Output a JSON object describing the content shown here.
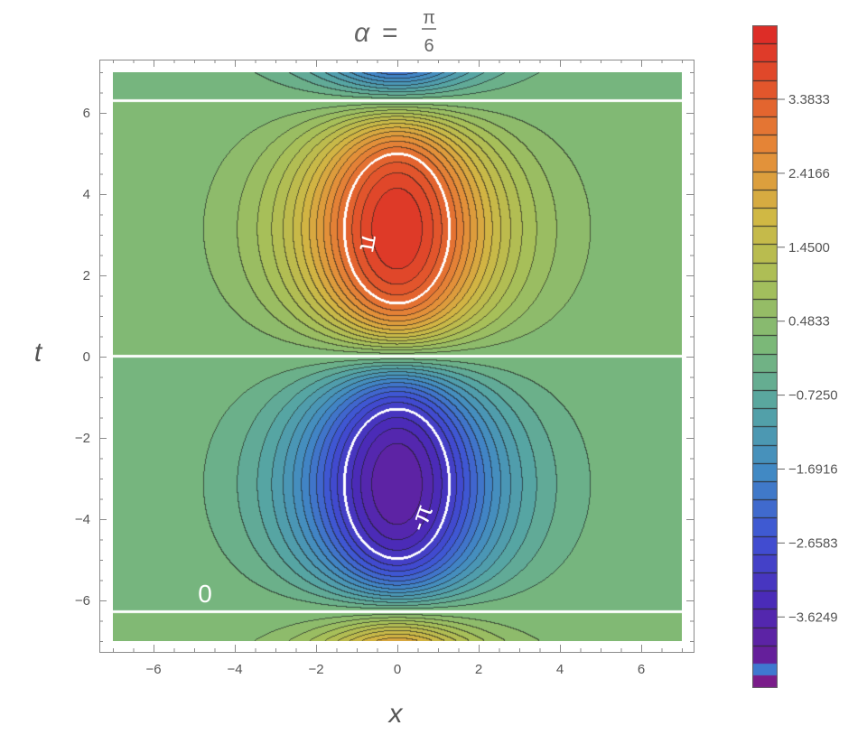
{
  "chart_data": {
    "type": "contour",
    "title": {
      "lhs": "α",
      "eq": "=",
      "num": "π",
      "den": "6"
    },
    "xlabel": "x",
    "ylabel": "t",
    "xlim": [
      -7,
      7
    ],
    "ylim": [
      -7,
      7
    ],
    "xticks": [
      "−6",
      "−4",
      "−2",
      "0",
      "2",
      "4",
      "6"
    ],
    "yticks": [
      "−6",
      "−4",
      "−2",
      "0",
      "2",
      "4",
      "6"
    ],
    "xtick_values": [
      -6,
      -4,
      -2,
      0,
      2,
      4,
      6
    ],
    "ytick_values": [
      -6,
      -4,
      -2,
      0,
      2,
      4,
      6
    ],
    "extrema": [
      {
        "kind": "max",
        "x": 0,
        "t": 3.14,
        "value": 4.1
      },
      {
        "kind": "min",
        "x": 0,
        "t": -3.14,
        "value": -4.1
      }
    ],
    "contour_step": 0.2417,
    "highlighted_contours": [
      {
        "level": 3.1416,
        "label": "π",
        "color": "#ffffff"
      },
      {
        "level": -3.1416,
        "label": "-π",
        "color": "#ffffff"
      },
      {
        "level": 0,
        "label": "0",
        "color": "#ffffff"
      }
    ],
    "colorbar": {
      "ticks": [
        "3.3833",
        "2.4166",
        "1.4500",
        "0.4833",
        "−0.7250",
        "−1.6916",
        "−2.6583",
        "−3.6249"
      ],
      "extra_swatches": [
        "#3f78d0",
        "#7a1c8a"
      ]
    },
    "colormap": [
      "#6a1d96",
      "#4a2bb8",
      "#3f52d4",
      "#4189c4",
      "#55a4a4",
      "#7bb878",
      "#a8bf58",
      "#d0b844",
      "#e58c38",
      "#e2562c",
      "#dc2626"
    ],
    "grid": false,
    "line_color": "#333333",
    "frame_color": "#8a8a8a"
  }
}
